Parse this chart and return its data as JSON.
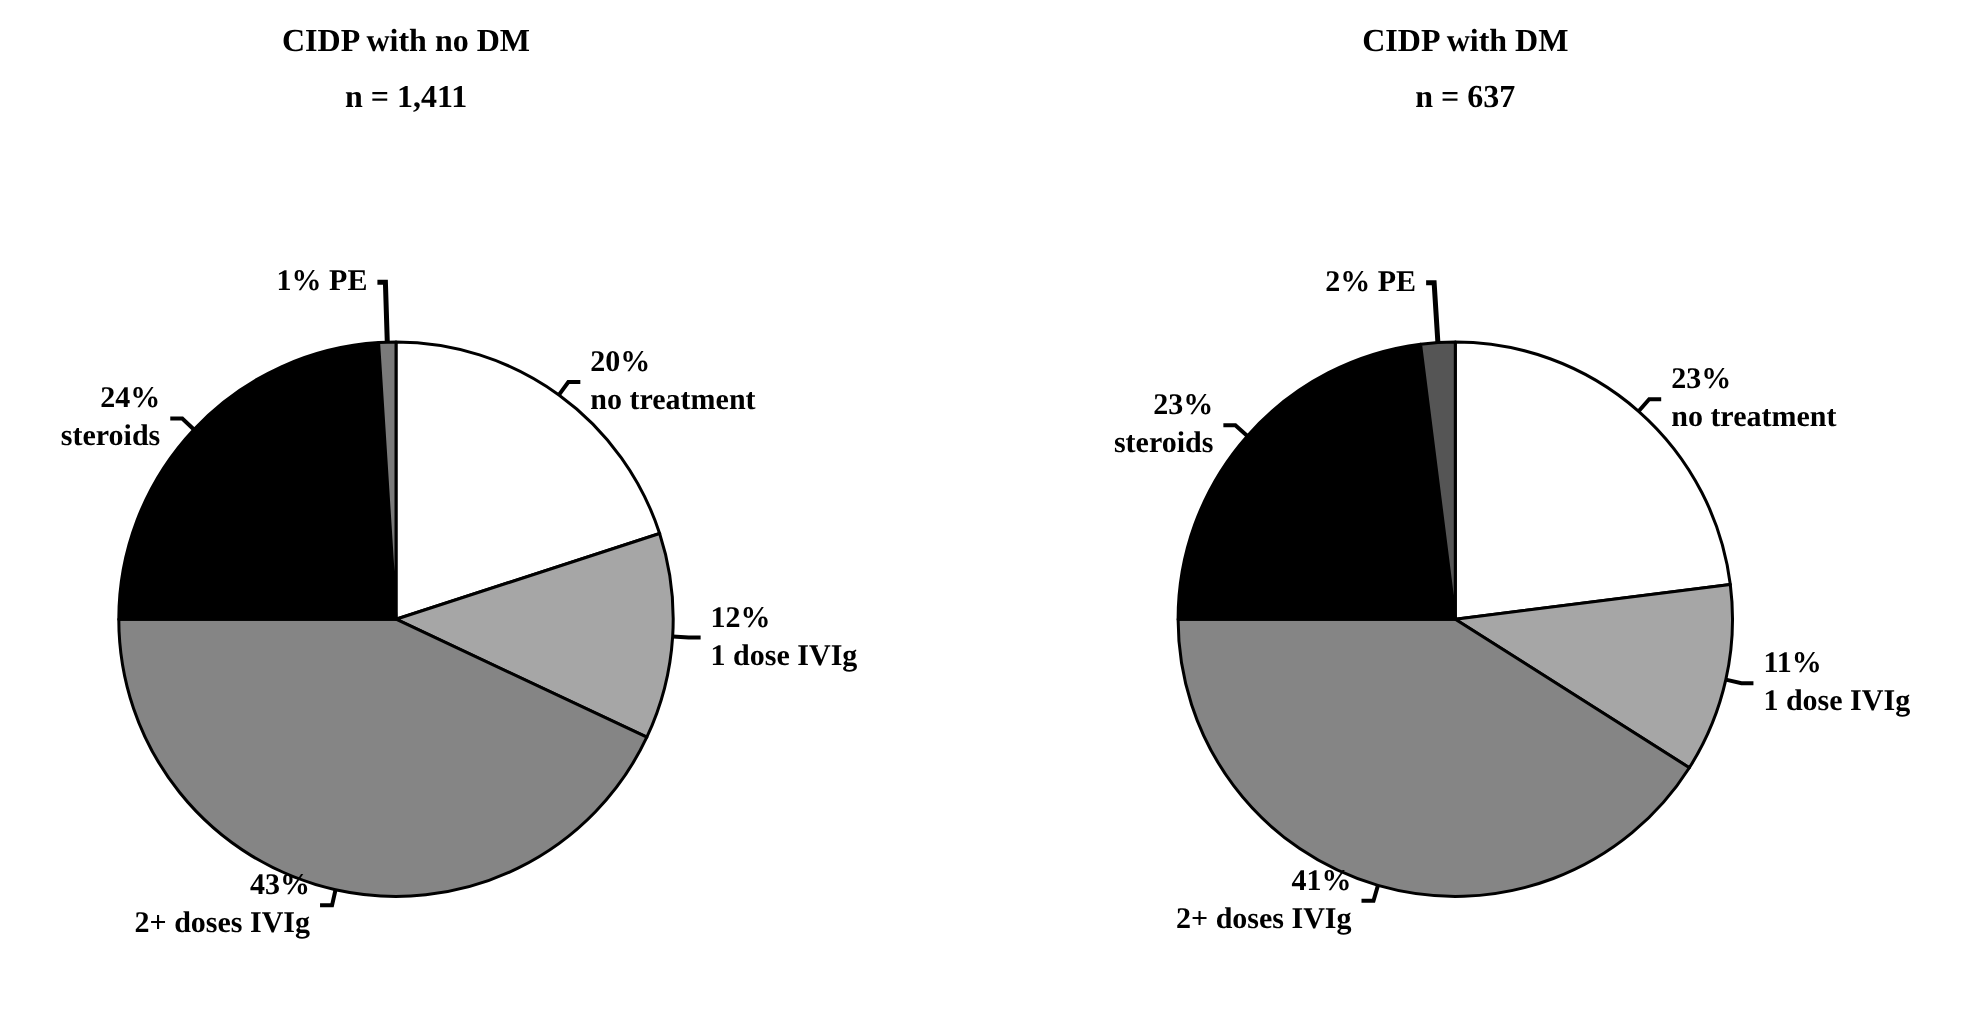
{
  "chart_data": [
    {
      "type": "pie",
      "title": "CIDP with no DM",
      "subtitle": "n = 1,411",
      "categories": [
        "no treatment",
        "1 dose IVIg",
        "2+ doses IVIg",
        "steroids",
        "PE"
      ],
      "values": [
        20,
        12,
        43,
        24,
        1
      ],
      "value_labels": [
        "20%",
        "12%",
        "43%",
        "24%",
        "1%"
      ],
      "colors": [
        "#ffffff",
        "#a6a6a6",
        "#858585",
        "#000000",
        "#7a7a7a"
      ],
      "legend": false
    },
    {
      "type": "pie",
      "title": "CIDP with DM",
      "subtitle": "n = 637",
      "categories": [
        "no treatment",
        "1 dose IVIg",
        "2+ doses IVIg",
        "steroids",
        "PE"
      ],
      "values": [
        23,
        11,
        41,
        23,
        2
      ],
      "value_labels": [
        "23%",
        "11%",
        "41%",
        "23%",
        "2%"
      ],
      "colors": [
        "#ffffff",
        "#a6a6a6",
        "#858585",
        "#000000",
        "#555555"
      ],
      "legend": false
    }
  ]
}
